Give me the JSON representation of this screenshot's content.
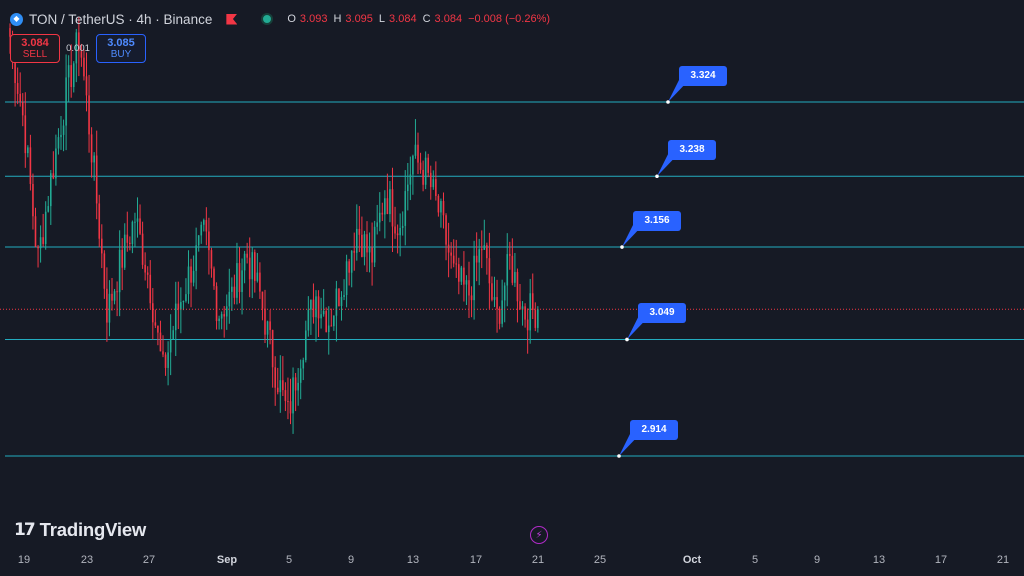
{
  "header": {
    "symbol_icon": "ton-diamond-icon",
    "title": "TON / TetherUS · 4h · Binance",
    "ohlc": [
      {
        "k": "O",
        "v": "3.093"
      },
      {
        "k": "H",
        "v": "3.095"
      },
      {
        "k": "L",
        "v": "3.084"
      },
      {
        "k": "C",
        "v": "3.084"
      },
      {
        "k": "",
        "v": "−0.008 (−0.26%)"
      }
    ]
  },
  "trade": {
    "sell_price": "3.084",
    "sell_label": "SELL",
    "spread": "0.001",
    "buy_price": "3.085",
    "buy_label": "BUY"
  },
  "branding": {
    "logo_text": "TradingView",
    "logo_icon": "tradingview-logo-icon"
  },
  "extras": {
    "lightning_icon": "lightning-icon"
  },
  "colors": {
    "up": "#22ab94",
    "down": "#f23645",
    "level_line": "#26c6da",
    "callout": "#2962ff",
    "background": "#161a25"
  },
  "chart_data": {
    "type": "candlestick",
    "title": "TON / TetherUS · 4h · Binance",
    "x_ticks": [
      {
        "label": "19",
        "bold": false
      },
      {
        "label": "23",
        "bold": false
      },
      {
        "label": "27",
        "bold": false
      },
      {
        "label": "Sep",
        "bold": true
      },
      {
        "label": "5",
        "bold": false
      },
      {
        "label": "9",
        "bold": false
      },
      {
        "label": "13",
        "bold": false
      },
      {
        "label": "17",
        "bold": false
      },
      {
        "label": "21",
        "bold": false
      },
      {
        "label": "25",
        "bold": false
      },
      {
        "label": "Oct",
        "bold": true
      },
      {
        "label": "5",
        "bold": false
      },
      {
        "label": "9",
        "bold": false
      },
      {
        "label": "13",
        "bold": false
      },
      {
        "label": "17",
        "bold": false
      },
      {
        "label": "21",
        "bold": false
      }
    ],
    "levels": [
      "3.324",
      "3.238",
      "3.156",
      "3.049",
      "2.914"
    ],
    "current_price": 3.084,
    "price_path_anchors": [
      3.4,
      3.3,
      3.14,
      3.24,
      3.33,
      3.4,
      3.25,
      3.08,
      3.14,
      3.19,
      3.12,
      3.01,
      3.08,
      3.13,
      3.17,
      3.08,
      3.1,
      3.15,
      3.1,
      3.02,
      2.96,
      3.04,
      3.1,
      3.07,
      3.12,
      3.18,
      3.14,
      3.22,
      3.18,
      3.26,
      3.24,
      3.19,
      3.12,
      3.1,
      3.16,
      3.07,
      3.14,
      3.08,
      3.084
    ],
    "grid": false
  }
}
